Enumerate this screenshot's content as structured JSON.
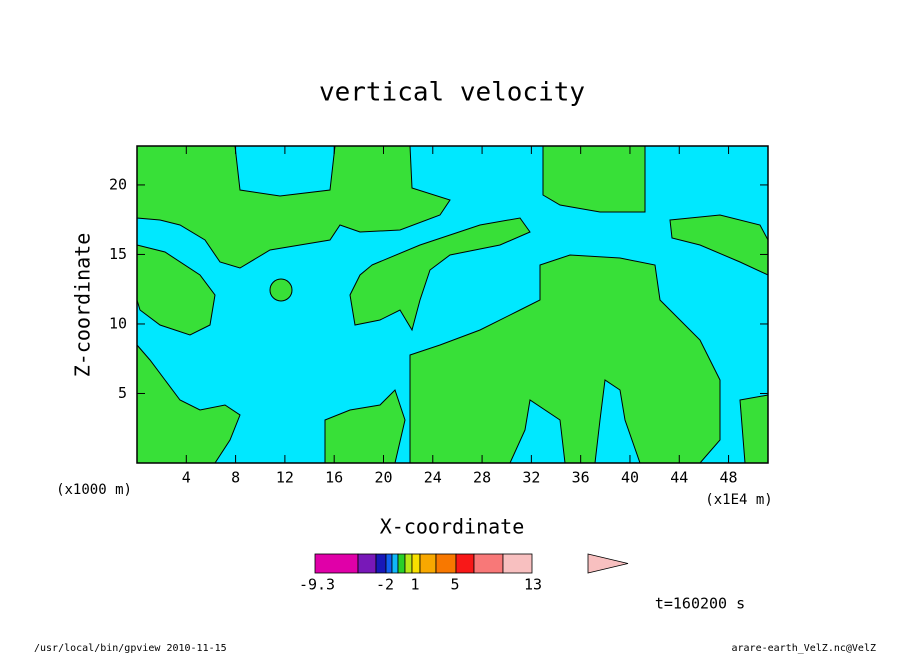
{
  "chart_data": {
    "type": "contour",
    "title": "vertical velocity",
    "x_label": "X-coordinate",
    "y_label": "Z-coordinate",
    "x_unit": "(x1E4 m)",
    "y_unit": "(x1000 m)",
    "xlim": [
      0,
      51.2
    ],
    "ylim": [
      0,
      22.8
    ],
    "xticks": [
      4,
      8,
      12,
      16,
      20,
      24,
      28,
      32,
      36,
      40,
      44,
      48
    ],
    "yticks": [
      5,
      10,
      15,
      20
    ],
    "colorbar": {
      "colors": [
        "#e000a8",
        "#7818b8",
        "#1818b8",
        "#1060f0",
        "#10b8f8",
        "#28d028",
        "#b8e818",
        "#f8e000",
        "#f8a800",
        "#f87800",
        "#f81818",
        "#f87878",
        "#f8c0c0",
        "#f8c0c0"
      ],
      "ticks": [
        -9.3,
        -2,
        1,
        5,
        13
      ]
    },
    "time_note": "t=160200 s",
    "footer_left": "/usr/local/bin/gpview  2010-11-15",
    "footer_right": "arare-earth_VelZ.nc@VelZ"
  }
}
